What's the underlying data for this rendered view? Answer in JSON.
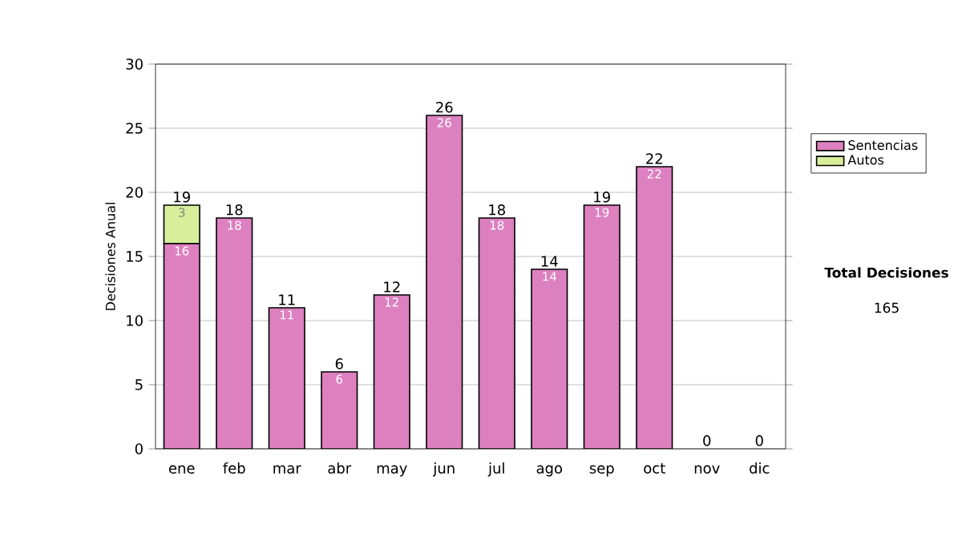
{
  "chart_data": {
    "type": "bar",
    "stacked": true,
    "ylabel": "Decisiones Anual",
    "categories": [
      "ene",
      "feb",
      "mar",
      "abr",
      "may",
      "jun",
      "jul",
      "ago",
      "sep",
      "oct",
      "nov",
      "dic"
    ],
    "series": [
      {
        "name": "Sentencias",
        "color": "#dd80c0",
        "values": [
          16,
          18,
          11,
          6,
          12,
          26,
          18,
          14,
          19,
          22,
          0,
          0
        ],
        "value_labels": [
          "16",
          "18",
          "11",
          "6",
          "12",
          "26",
          "18",
          "14",
          "19",
          "22",
          null,
          null
        ]
      },
      {
        "name": "Autos",
        "color": "#d8ee9a",
        "values": [
          3,
          0,
          0,
          0,
          0,
          0,
          0,
          0,
          0,
          0,
          0,
          0
        ],
        "value_labels": [
          "3",
          null,
          null,
          null,
          null,
          null,
          null,
          null,
          null,
          null,
          null,
          null
        ]
      }
    ],
    "totals": [
      "19",
      "18",
      "11",
      "6",
      "12",
      "26",
      "18",
      "14",
      "19",
      "22",
      "0",
      "0"
    ],
    "ylim": [
      0,
      30
    ],
    "yticks": [
      0,
      5,
      10,
      15,
      20,
      25,
      30
    ],
    "grid": "y",
    "legend": "right",
    "annotations": [
      "Total Decisiones",
      "165"
    ]
  }
}
